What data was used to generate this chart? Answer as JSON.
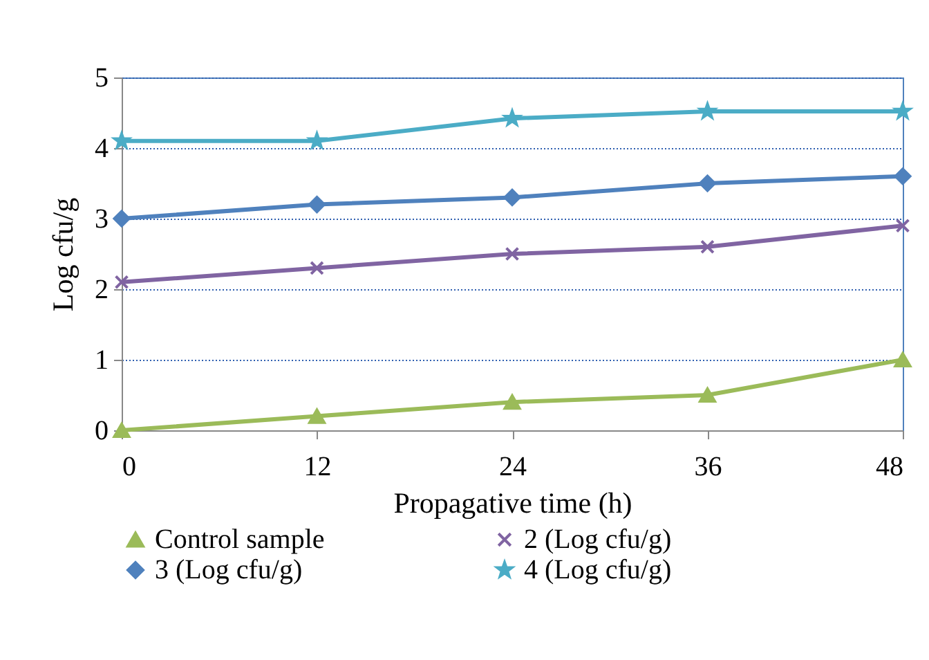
{
  "chart_data": {
    "type": "line",
    "xlabel": "Propagative time (h)",
    "ylabel": "Log cfu/g",
    "x": [
      0,
      12,
      24,
      36,
      48
    ],
    "xlim": [
      0,
      48
    ],
    "xticks": [
      0,
      12,
      24,
      36,
      48
    ],
    "ylim": [
      0,
      5
    ],
    "yticks": [
      0,
      1,
      2,
      3,
      4,
      5
    ],
    "grid": "y",
    "legend": "bottom",
    "series": [
      {
        "name": "Control sample",
        "color": "#9bbb59",
        "marker": "triangle",
        "values": [
          0,
          0.2,
          0.4,
          0.5,
          1.0
        ]
      },
      {
        "name": "2 (Log cfu/g)",
        "color": "#8064a2",
        "marker": "cross",
        "values": [
          2.1,
          2.3,
          2.5,
          2.6,
          2.9
        ]
      },
      {
        "name": "3 (Log cfu/g)",
        "color": "#4f81bd",
        "marker": "diamond",
        "values": [
          3.0,
          3.2,
          3.3,
          3.5,
          3.6
        ]
      },
      {
        "name": "4 (Log cfu/g)",
        "color": "#4bacc6",
        "marker": "star",
        "values": [
          4.1,
          4.1,
          4.42,
          4.52,
          4.52
        ]
      }
    ]
  }
}
